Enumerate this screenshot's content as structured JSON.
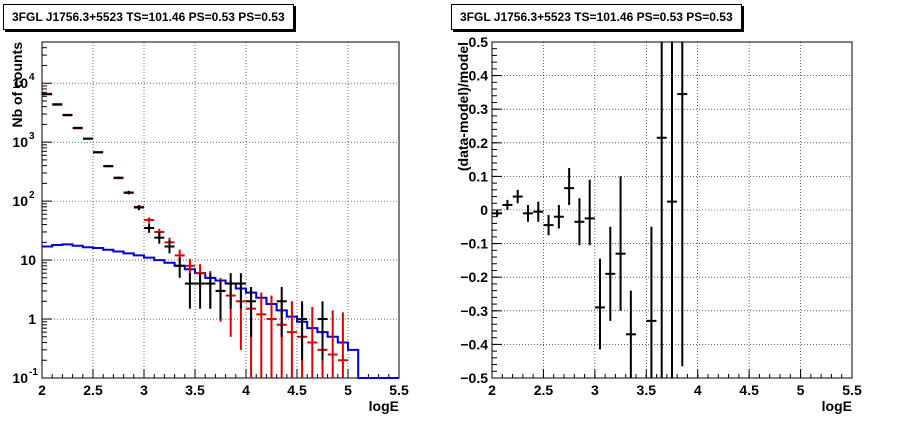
{
  "chart_data": [
    {
      "type": "line",
      "title": "3FGL J1756.3+5523 TS=101.46 PS=0.53 PS=0.53",
      "xlabel": "logE",
      "ylabel": "Nb of counts",
      "xlim": [
        2,
        5.5
      ],
      "ylim": [
        0.1,
        50000
      ],
      "yscale": "log",
      "grid": true,
      "xticks": [
        "2",
        "2.5",
        "3",
        "3.5",
        "4",
        "4.5",
        "5",
        "5.5"
      ],
      "yticks": [
        {
          "v": 0.1,
          "base": "10",
          "exp": "-1"
        },
        {
          "v": 1,
          "base": "1",
          "exp": ""
        },
        {
          "v": 10,
          "base": "10",
          "exp": ""
        },
        {
          "v": 100,
          "base": "10",
          "exp": "2"
        },
        {
          "v": 1000,
          "base": "10",
          "exp": "3"
        },
        {
          "v": 10000,
          "base": "10",
          "exp": "4"
        }
      ],
      "colors": {
        "data": "#000000",
        "model_points": "#e00000",
        "model_line": "#0000dd"
      },
      "series": [
        {
          "role": "data",
          "color": "#000000",
          "x": [
            2.05,
            2.15,
            2.25,
            2.35,
            2.45,
            2.55,
            2.65,
            2.75,
            2.85,
            2.95,
            3.05,
            3.15,
            3.25,
            3.35,
            3.45,
            3.55,
            3.65,
            3.75,
            3.85,
            3.95,
            4.05,
            4.35,
            4.55,
            4.75
          ],
          "y": [
            6500,
            4400,
            2900,
            1750,
            1150,
            670,
            390,
            250,
            140,
            78,
            35,
            24,
            17,
            8,
            4,
            4,
            4,
            3,
            4,
            4,
            2,
            2,
            1,
            1
          ],
          "ylo": [
            6400,
            4300,
            2850,
            1720,
            1120,
            650,
            375,
            240,
            130,
            70,
            29,
            19,
            13,
            5,
            1.5,
            1.5,
            1.5,
            1,
            1.5,
            1.5,
            0.5,
            0.5,
            0.2,
            0.2
          ],
          "yhi": [
            6600,
            4500,
            2950,
            1780,
            1180,
            690,
            405,
            260,
            150,
            86,
            42,
            30,
            22,
            11,
            6,
            6,
            6,
            4.5,
            6,
            6,
            3.5,
            3.5,
            2,
            2
          ]
        },
        {
          "role": "model_points",
          "color": "#e00000",
          "x": [
            2.05,
            2.15,
            2.25,
            2.35,
            2.45,
            2.55,
            2.65,
            2.75,
            2.85,
            2.95,
            3.05,
            3.15,
            3.25,
            3.35,
            3.45,
            3.55,
            3.65,
            3.75,
            3.85,
            3.95,
            4.05,
            4.15,
            4.25,
            4.35,
            4.45,
            4.55,
            4.65,
            4.75,
            4.85,
            4.95
          ],
          "y": [
            6600,
            4300,
            2850,
            1720,
            1140,
            680,
            395,
            245,
            138,
            80,
            48,
            30,
            20,
            12,
            8,
            6,
            4,
            3,
            2.5,
            2,
            1.5,
            1.2,
            1,
            0.8,
            0.6,
            0.5,
            0.4,
            0.3,
            0.25,
            0.2
          ],
          "ylo": [
            6500,
            4200,
            2800,
            1700,
            1120,
            665,
            385,
            238,
            133,
            76,
            43,
            26,
            16,
            9,
            5.5,
            3.5,
            1.5,
            0.9,
            0.5,
            0.3,
            0.1,
            0.1,
            0.1,
            0.1,
            0.1,
            0.1,
            0.1,
            0.1,
            0.1,
            0.1
          ],
          "yhi": [
            6700,
            4400,
            2900,
            1740,
            1160,
            695,
            405,
            252,
            143,
            84,
            53,
            34,
            24,
            15,
            10.5,
            8.5,
            6.5,
            5,
            4.5,
            3.8,
            3.2,
            2.8,
            2.5,
            2.2,
            2,
            1.8,
            1.6,
            1.5,
            1.4,
            1.3
          ]
        },
        {
          "role": "model_line",
          "color": "#0000dd",
          "bin_edges": [
            2.0,
            2.1,
            2.2,
            2.3,
            2.4,
            2.5,
            2.6,
            2.7,
            2.8,
            2.9,
            3.0,
            3.1,
            3.2,
            3.3,
            3.4,
            3.5,
            3.6,
            3.7,
            3.8,
            3.9,
            4.0,
            4.1,
            4.2,
            4.3,
            4.4,
            4.5,
            4.6,
            4.7,
            4.8,
            4.9,
            5.0,
            5.1,
            5.5
          ],
          "y": [
            17,
            18,
            18.5,
            17.5,
            16.5,
            16,
            15,
            14,
            13,
            12,
            11,
            10,
            9,
            8,
            7,
            6,
            5,
            4.5,
            4,
            3.3,
            2.8,
            2.3,
            1.8,
            1.4,
            1.1,
            0.9,
            0.7,
            0.6,
            0.5,
            0.4,
            0.3,
            0.1
          ]
        }
      ]
    },
    {
      "type": "scatter",
      "title": "3FGL J1756.3+5523 TS=101.46 PS=0.53 PS=0.53",
      "xlabel": "logE",
      "ylabel": "(data-model)/model",
      "xlim": [
        2,
        5.5
      ],
      "ylim": [
        -0.5,
        0.5
      ],
      "grid": true,
      "xticks": [
        "2",
        "2.5",
        "3",
        "3.5",
        "4",
        "4.5",
        "5",
        "5.5"
      ],
      "yticks": [
        "−0.5",
        "−0.4",
        "−0.3",
        "−0.2",
        "−0.1",
        "0",
        "0.1",
        "0.2",
        "0.3",
        "0.4",
        "0.5"
      ],
      "series": [
        {
          "role": "residuals",
          "color": "#000000",
          "x": [
            2.05,
            2.15,
            2.25,
            2.35,
            2.45,
            2.55,
            2.65,
            2.75,
            2.85,
            2.95,
            3.05,
            3.15,
            3.25,
            3.35,
            3.55,
            3.65,
            3.75,
            3.85
          ],
          "y": [
            -0.01,
            0.015,
            0.04,
            -0.01,
            -0.005,
            -0.045,
            -0.02,
            0.065,
            -0.035,
            -0.025,
            -0.29,
            -0.19,
            -0.13,
            -0.37,
            -0.33,
            0.215,
            0.025,
            0.345
          ],
          "ylo": [
            -0.02,
            0.0,
            0.02,
            -0.035,
            -0.035,
            -0.075,
            -0.055,
            0.015,
            -0.105,
            -0.105,
            -0.415,
            -0.33,
            -0.3,
            -0.5,
            -0.5,
            -0.5,
            -0.5,
            -0.465
          ],
          "yhi": [
            0.0,
            0.03,
            0.06,
            0.015,
            0.025,
            -0.015,
            0.015,
            0.125,
            0.035,
            0.09,
            -0.145,
            -0.05,
            0.1,
            -0.24,
            -0.05,
            0.5,
            0.5,
            0.5
          ]
        }
      ]
    }
  ]
}
